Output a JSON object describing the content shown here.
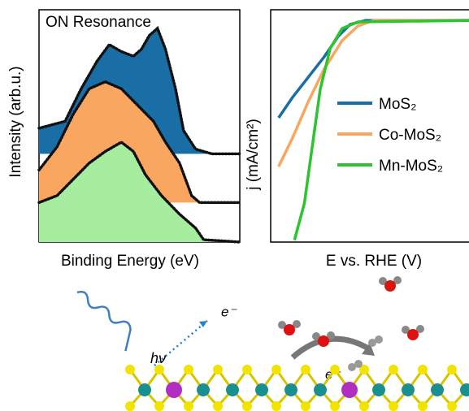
{
  "chart_data": [
    {
      "type": "area",
      "title": "ON Resonance",
      "x_label": "Binding Energy (eV)",
      "y_label": "Intensity (arb.u.)",
      "xlim": [
        0,
        100
      ],
      "ylim": [
        0,
        100
      ],
      "series": [
        {
          "color": "#1a6ea6",
          "x": [
            0,
            13,
            21,
            29,
            35,
            41,
            47,
            51,
            55,
            59,
            63,
            68,
            72,
            78,
            86,
            100
          ],
          "values": [
            49,
            52,
            66,
            78,
            85,
            82,
            80,
            83,
            89,
            92,
            83,
            66,
            48,
            40,
            38,
            38
          ]
        },
        {
          "color": "#f9a660",
          "x": [
            0,
            9,
            17,
            25,
            33,
            41,
            49,
            57,
            63,
            70,
            76,
            80,
            100
          ],
          "values": [
            31,
            41,
            55,
            66,
            69,
            66,
            59,
            52,
            43,
            34,
            20,
            17,
            17
          ]
        },
        {
          "color": "#a6eda0",
          "x": [
            0,
            9,
            17,
            25,
            33,
            41,
            47,
            53,
            61,
            70,
            78,
            82,
            100
          ],
          "values": [
            17,
            20,
            27,
            34,
            39,
            43,
            39,
            29,
            20,
            12,
            6,
            1,
            0
          ]
        }
      ]
    },
    {
      "type": "line",
      "x_label": "E vs. RHE (V)",
      "y_label": "j (mA/cm²)",
      "legend": "right",
      "xlim": [
        0,
        100
      ],
      "ylim": [
        -115,
        5
      ],
      "series": [
        {
          "name": "MoS₂",
          "color": "#1a6ea6",
          "x": [
            4,
            11,
            19,
            27,
            34,
            40,
            48,
            100
          ],
          "values": [
            -50.8,
            -40.3,
            -29.8,
            -19.3,
            -8.8,
            -2.6,
            -0.5,
            -0.5
          ]
        },
        {
          "name": "Co-MoS₂",
          "color": "#f9a660",
          "x": [
            4,
            11,
            19,
            27,
            36,
            44,
            52,
            100
          ],
          "values": [
            -76,
            -61.3,
            -42.4,
            -25.6,
            -11,
            -3.4,
            -0.5,
            -0.5
          ]
        },
        {
          "name": "Mn-MoS₂",
          "color": "#2ec42e",
          "x": [
            12,
            17,
            21,
            25,
            30,
            36,
            44,
            100
          ],
          "values": [
            -114,
            -95,
            -65.5,
            -36,
            -15,
            -4.7,
            -1.3,
            -0.5
          ]
        }
      ]
    }
  ],
  "schematic": {
    "photon_label": "hν",
    "emitted_electron": "e⁻",
    "surface_electron": "e⁻"
  }
}
